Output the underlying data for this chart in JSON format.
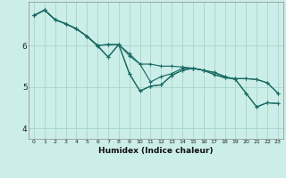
{
  "title": "",
  "xlabel": "Humidex (Indice chaleur)",
  "bg_color": "#cceee8",
  "grid_color": "#aad8d0",
  "line_color": "#1a6b65",
  "xlim": [
    -0.5,
    23.5
  ],
  "ylim": [
    3.75,
    7.05
  ],
  "yticks": [
    4,
    5,
    6
  ],
  "ytick_labels": [
    "4",
    "5",
    "6"
  ],
  "xticks": [
    0,
    1,
    2,
    3,
    4,
    5,
    6,
    7,
    8,
    9,
    10,
    11,
    12,
    13,
    14,
    15,
    16,
    17,
    18,
    19,
    20,
    21,
    22,
    23
  ],
  "lines": [
    [
      6.72,
      6.85,
      6.62,
      6.52,
      6.4,
      6.22,
      5.98,
      5.72,
      6.02,
      5.32,
      4.9,
      5.02,
      5.05,
      5.28,
      5.4,
      5.45,
      5.4,
      5.35,
      5.25,
      5.18,
      4.85,
      4.52,
      4.62,
      4.6
    ],
    [
      6.72,
      6.85,
      6.62,
      6.52,
      6.4,
      6.22,
      6.0,
      6.02,
      6.02,
      5.75,
      5.55,
      5.55,
      5.5,
      5.5,
      5.48,
      5.45,
      5.4,
      5.3,
      5.22,
      5.2,
      5.2,
      5.18,
      5.1,
      4.85
    ],
    [
      6.72,
      6.85,
      6.62,
      6.52,
      6.4,
      6.22,
      6.0,
      6.02,
      6.02,
      5.8,
      5.55,
      5.12,
      5.25,
      5.32,
      5.45,
      5.45,
      5.4,
      5.3,
      5.22,
      5.2,
      5.2,
      5.18,
      5.1,
      4.85
    ],
    [
      6.72,
      6.85,
      6.62,
      6.52,
      6.4,
      6.22,
      6.0,
      5.72,
      6.02,
      5.32,
      4.9,
      5.02,
      5.05,
      5.28,
      5.4,
      5.45,
      5.4,
      5.35,
      5.25,
      5.18,
      4.85,
      4.52,
      4.62,
      4.6
    ]
  ]
}
